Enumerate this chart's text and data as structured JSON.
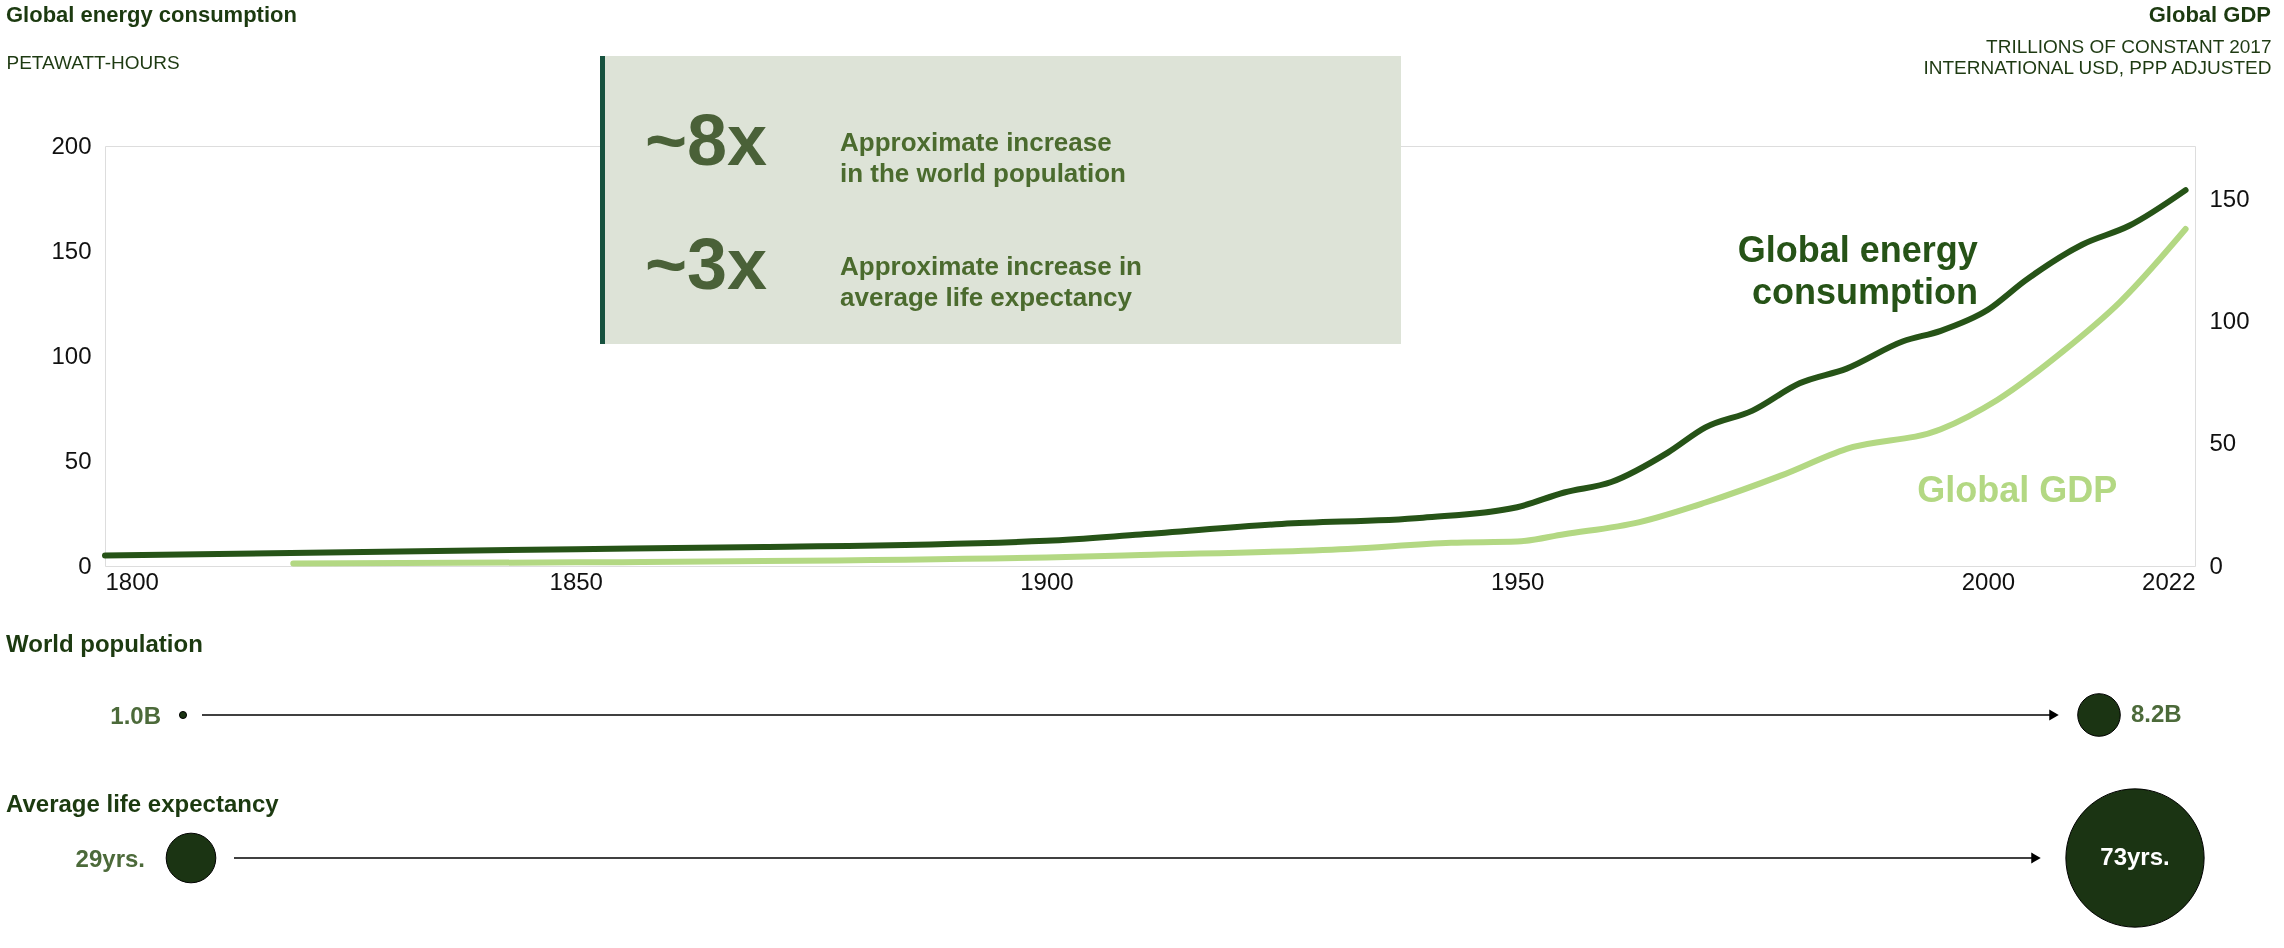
{
  "chart_data": {
    "type": "line",
    "ylabel": "PETAWATT-HOURS",
    "y2label": "TRILLIONS OF CONSTANT 2017 INTERNATIONAL USD, PPP ADJUSTED",
    "annotations": [
      "Global energy consumption",
      "Global GDP",
      "~8x",
      "Approximate increase in the world population",
      "~3x",
      "Approximate increase in average life expectancy",
      "World population",
      "1.0B",
      "8.2B",
      "Average life expectancy",
      "29yrs.",
      "73yrs."
    ],
    "xlim": [
      1800,
      2022
    ],
    "xticks": [
      1800,
      1850,
      1900,
      1950,
      2000,
      2022
    ],
    "ylim": [
      0,
      200
    ],
    "yticks": [
      0,
      50,
      100,
      150,
      200
    ],
    "y2lim": [
      0,
      172
    ],
    "y2ticks": [
      0,
      50,
      100,
      150
    ],
    "series": [
      {
        "name": "Global energy consumption",
        "color": "#265317",
        "x": [
          1800,
          1850,
          1870,
          1900,
          1910,
          1925,
          1940,
          1950,
          1955,
          1960,
          1966,
          1970,
          1975,
          1980,
          1985,
          1991,
          1995,
          2000,
          2004,
          2010,
          2015,
          2021
        ],
        "values": [
          5,
          8,
          9,
          12,
          15,
          20,
          23,
          28,
          35,
          40,
          54,
          66,
          74,
          87,
          94,
          107,
          112,
          122,
          136,
          153,
          162,
          179
        ]
      },
      {
        "name": "Global GDP",
        "color": "#b3d883",
        "axis": "y2",
        "x": [
          1820,
          1850,
          1900,
          1910,
          1932,
          1943,
          1950,
          1955,
          1963,
          1970,
          1978,
          1985,
          1995,
          2001,
          2008,
          2014,
          2021
        ],
        "values": [
          1,
          1.5,
          3.5,
          4.5,
          7,
          9.5,
          10,
          13,
          18,
          26,
          37,
          48,
          56,
          68,
          88,
          108,
          138
        ]
      }
    ]
  }
}
